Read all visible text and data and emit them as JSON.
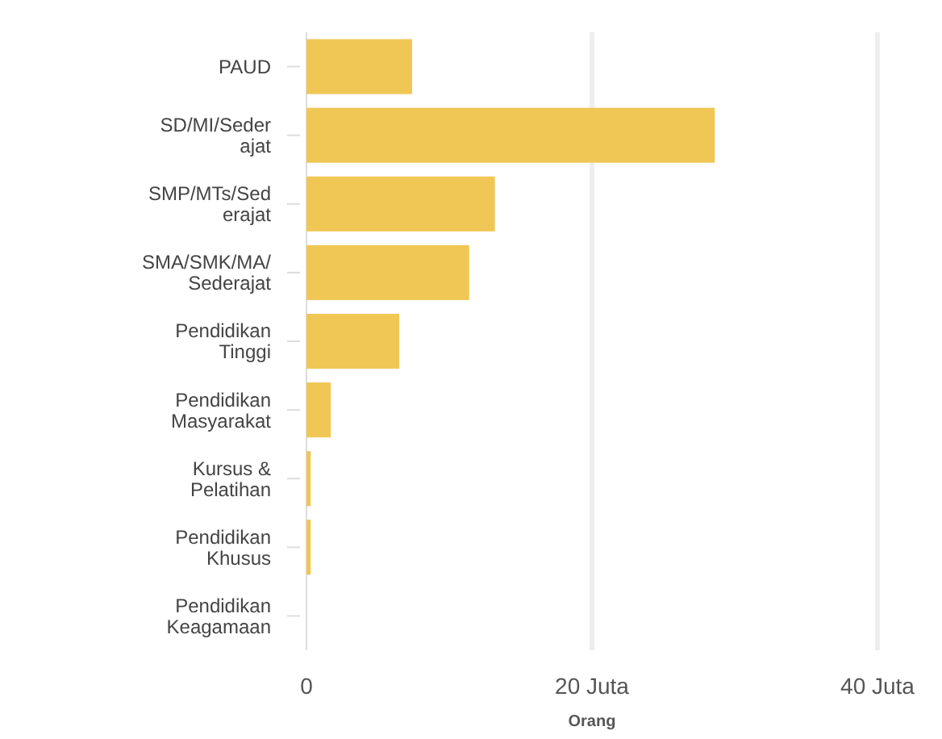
{
  "chart_data": {
    "type": "bar",
    "orientation": "horizontal",
    "xlabel": "Orang",
    "categories": [
      "PAUD",
      "SD/MI/Sederajat",
      "SMP/MTs/Sederajat",
      "SMA/SMK/MA/Sederajat",
      "Pendidikan Tinggi",
      "Pendidikan Masyarakat",
      "Kursus & Pelatihan",
      "Pendidikan Khusus",
      "Pendidikan Keagamaan"
    ],
    "values": [
      7.4,
      28.6,
      13.2,
      11.4,
      6.5,
      1.7,
      0.3,
      0.3,
      0
    ],
    "color": "#f0c755",
    "xlim": [
      0,
      40
    ],
    "xticks": [
      0,
      {
        "value": 20,
        "label": "20 Juta"
      },
      {
        "value": 40,
        "label": "40 Juta"
      }
    ],
    "grid": "x"
  }
}
